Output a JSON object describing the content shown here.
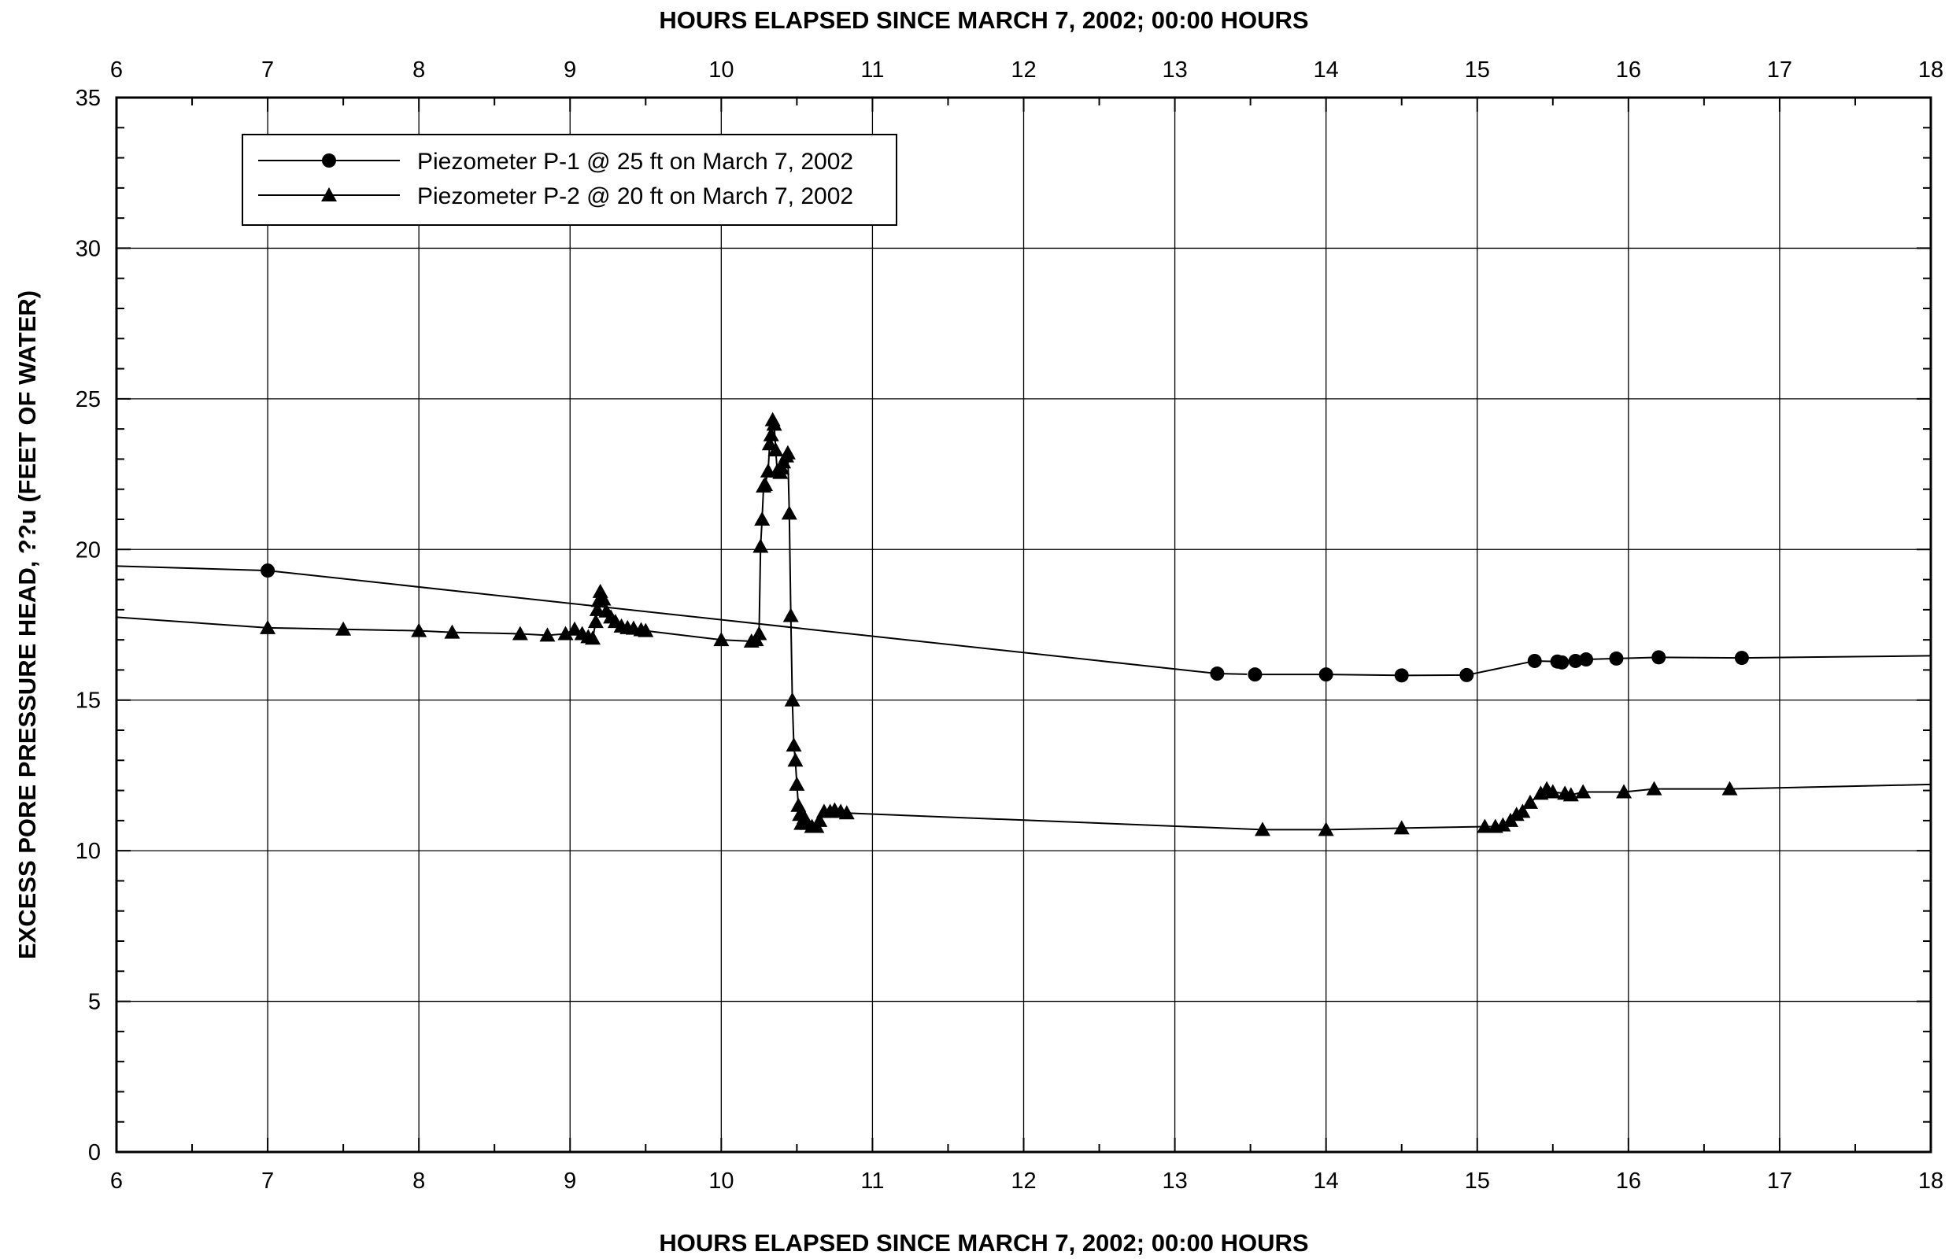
{
  "chart_data": {
    "type": "line",
    "xlabel_top": "HOURS ELAPSED SINCE MARCH 7, 2002; 00:00 HOURS",
    "xlabel": "HOURS ELAPSED SINCE MARCH 7, 2002; 00:00 HOURS",
    "ylabel": "EXCESS PORE PRESSURE HEAD, ??u (FEET OF WATER)",
    "xlim": [
      6,
      18
    ],
    "ylim": [
      0,
      35
    ],
    "xticks": [
      "6",
      "7",
      "8",
      "9",
      "10",
      "11",
      "12",
      "13",
      "14",
      "15",
      "16",
      "17",
      "18"
    ],
    "yticks": [
      "0",
      "5",
      "10",
      "15",
      "20",
      "25",
      "30",
      "35"
    ],
    "grid": true,
    "legend_position": "top-left",
    "series": [
      {
        "name": "Piezometer P-1 @ 25 ft on March 7, 2002",
        "marker": "circle",
        "color": "#000000",
        "lead_in": [
          [
            6.0,
            19.45
          ]
        ],
        "points": [
          [
            7.0,
            19.3
          ],
          [
            13.28,
            15.88
          ],
          [
            13.53,
            15.85
          ],
          [
            14.0,
            15.85
          ],
          [
            14.5,
            15.82
          ],
          [
            14.93,
            15.83
          ],
          [
            15.38,
            16.3
          ],
          [
            15.53,
            16.28
          ],
          [
            15.56,
            16.25
          ],
          [
            15.65,
            16.3
          ],
          [
            15.72,
            16.35
          ],
          [
            15.92,
            16.38
          ],
          [
            16.2,
            16.42
          ],
          [
            16.75,
            16.4
          ]
        ],
        "tail": [
          [
            18.0,
            16.47
          ]
        ],
        "dashed_segment": [
          1,
          2
        ]
      },
      {
        "name": "Piezometer P-2 @ 20 ft on March 7, 2002",
        "marker": "triangle",
        "color": "#000000",
        "lead_in": [
          [
            6.0,
            17.75
          ]
        ],
        "points": [
          [
            7.0,
            17.4
          ],
          [
            7.5,
            17.35
          ],
          [
            8.0,
            17.3
          ],
          [
            8.22,
            17.25
          ],
          [
            8.67,
            17.2
          ],
          [
            8.85,
            17.15
          ],
          [
            8.97,
            17.2
          ],
          [
            9.03,
            17.35
          ],
          [
            9.08,
            17.2
          ],
          [
            9.12,
            17.1
          ],
          [
            9.15,
            17.05
          ],
          [
            9.17,
            17.6
          ],
          [
            9.18,
            18.0
          ],
          [
            9.19,
            18.3
          ],
          [
            9.2,
            18.6
          ],
          [
            9.22,
            18.35
          ],
          [
            9.24,
            17.95
          ],
          [
            9.27,
            17.75
          ],
          [
            9.3,
            17.6
          ],
          [
            9.34,
            17.45
          ],
          [
            9.38,
            17.4
          ],
          [
            9.42,
            17.38
          ],
          [
            9.47,
            17.33
          ],
          [
            9.5,
            17.3
          ],
          [
            10.0,
            17.0
          ],
          [
            10.2,
            16.95
          ],
          [
            10.23,
            17.0
          ],
          [
            10.25,
            17.2
          ],
          [
            10.26,
            20.1
          ],
          [
            10.27,
            21.0
          ],
          [
            10.28,
            22.1
          ],
          [
            10.29,
            22.15
          ],
          [
            10.31,
            22.6
          ],
          [
            10.32,
            23.5
          ],
          [
            10.33,
            23.8
          ],
          [
            10.34,
            24.3
          ],
          [
            10.35,
            24.15
          ],
          [
            10.36,
            23.3
          ],
          [
            10.37,
            22.6
          ],
          [
            10.39,
            22.55
          ],
          [
            10.4,
            22.7
          ],
          [
            10.41,
            22.9
          ],
          [
            10.43,
            23.1
          ],
          [
            10.44,
            23.2
          ],
          [
            10.45,
            21.2
          ],
          [
            10.46,
            17.8
          ],
          [
            10.47,
            15.0
          ],
          [
            10.48,
            13.5
          ],
          [
            10.49,
            13.0
          ],
          [
            10.5,
            12.2
          ],
          [
            10.51,
            11.5
          ],
          [
            10.52,
            11.2
          ],
          [
            10.53,
            10.9
          ],
          [
            10.55,
            11.1
          ],
          [
            10.57,
            10.9
          ],
          [
            10.6,
            10.8
          ],
          [
            10.63,
            10.8
          ],
          [
            10.65,
            11.0
          ],
          [
            10.68,
            11.3
          ],
          [
            10.72,
            11.3
          ],
          [
            10.75,
            11.35
          ],
          [
            10.79,
            11.3
          ],
          [
            10.83,
            11.25
          ],
          [
            13.58,
            10.7
          ],
          [
            14.0,
            10.7
          ],
          [
            14.5,
            10.75
          ],
          [
            15.05,
            10.8
          ],
          [
            15.12,
            10.8
          ],
          [
            15.17,
            10.85
          ],
          [
            15.22,
            11.0
          ],
          [
            15.26,
            11.2
          ],
          [
            15.3,
            11.3
          ],
          [
            15.35,
            11.6
          ],
          [
            15.42,
            11.9
          ],
          [
            15.46,
            12.05
          ],
          [
            15.5,
            11.95
          ],
          [
            15.58,
            11.9
          ],
          [
            15.62,
            11.85
          ],
          [
            15.7,
            11.95
          ],
          [
            15.97,
            11.95
          ],
          [
            16.17,
            12.05
          ],
          [
            16.67,
            12.05
          ]
        ],
        "tail": [
          [
            18.0,
            12.2
          ]
        ]
      }
    ]
  }
}
